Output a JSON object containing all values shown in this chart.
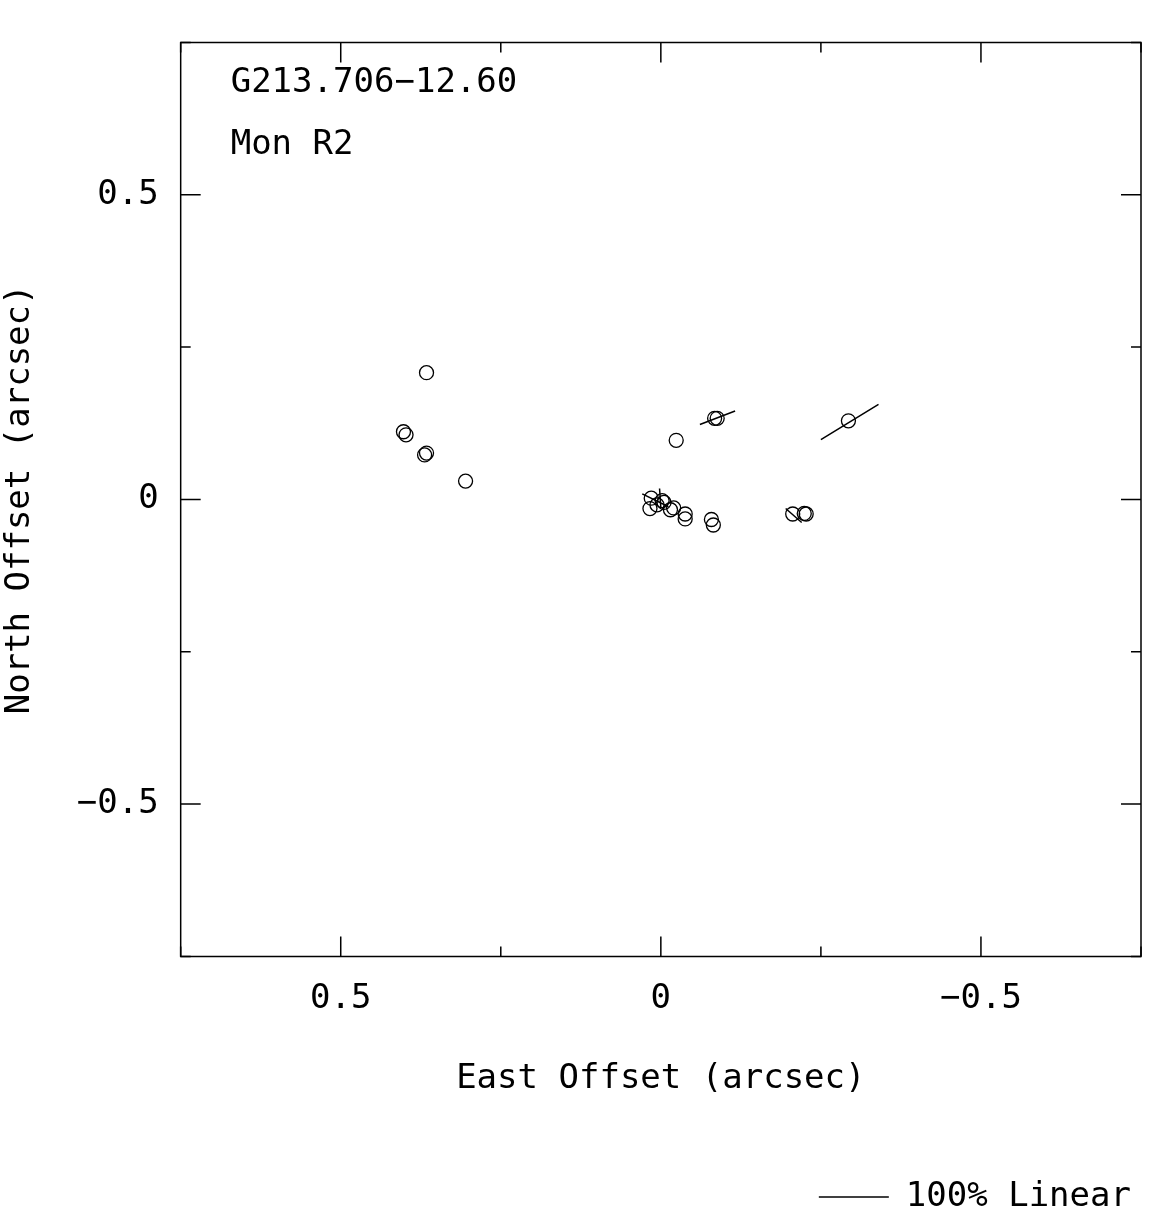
{
  "chart_data": {
    "type": "scatter",
    "title": "G213.706−12.60",
    "subtitle": "Mon R2",
    "xlabel": "East Offset (arcsec)",
    "ylabel": "North Offset (arcsec)",
    "xlim": [
      0.75,
      -0.75
    ],
    "ylim": [
      -0.75,
      0.75
    ],
    "xticks": [
      {
        "value": 0.75,
        "label": null
      },
      0.5,
      {
        "value": 0.25,
        "label": null
      },
      0,
      {
        "value": -0.25,
        "label": null
      },
      -0.5,
      {
        "value": -0.75,
        "label": null
      }
    ],
    "yticks": [
      {
        "value": -0.75,
        "label": null
      },
      -0.5,
      {
        "value": -0.25,
        "label": null
      },
      0,
      {
        "value": 0.25,
        "label": null
      },
      0.5,
      {
        "value": 0.75,
        "label": null
      }
    ],
    "marker": "circle",
    "legend": "bottom right",
    "series": [
      {
        "color": "#000000",
        "x": [
          0.366,
          0.402,
          0.398,
          0.369,
          0.366,
          0.305,
          -0.024,
          -0.084,
          -0.088,
          -0.293,
          0.015,
          0.017,
          0.006,
          -0.002,
          -0.005,
          -0.015,
          -0.02,
          -0.038,
          -0.038,
          -0.079,
          -0.082,
          -0.206,
          -0.224,
          -0.227
        ],
        "values": [
          0.208,
          0.111,
          0.106,
          0.073,
          0.076,
          0.03,
          0.097,
          0.133,
          0.133,
          0.129,
          0.002,
          -0.015,
          -0.009,
          -0.002,
          -0.005,
          -0.017,
          -0.014,
          -0.024,
          -0.032,
          -0.033,
          -0.042,
          -0.024,
          -0.023,
          -0.024
        ]
      },
      {
        "type": "line",
        "name": "100% Linear",
        "color": "#000000",
        "marker": "none",
        "x": [
          -0.061,
          -0.116,
          null,
          -0.25,
          -0.34,
          null,
          0.029,
          -0.012,
          null,
          0.002,
          0,
          null,
          -0.195,
          -0.22
        ],
        "values": [
          0.123,
          0.145,
          null,
          0.098,
          0.156,
          null,
          0.009,
          -0.012,
          null,
          0.018,
          -0.014,
          null,
          -0.015,
          -0.038
        ]
      }
    ]
  }
}
